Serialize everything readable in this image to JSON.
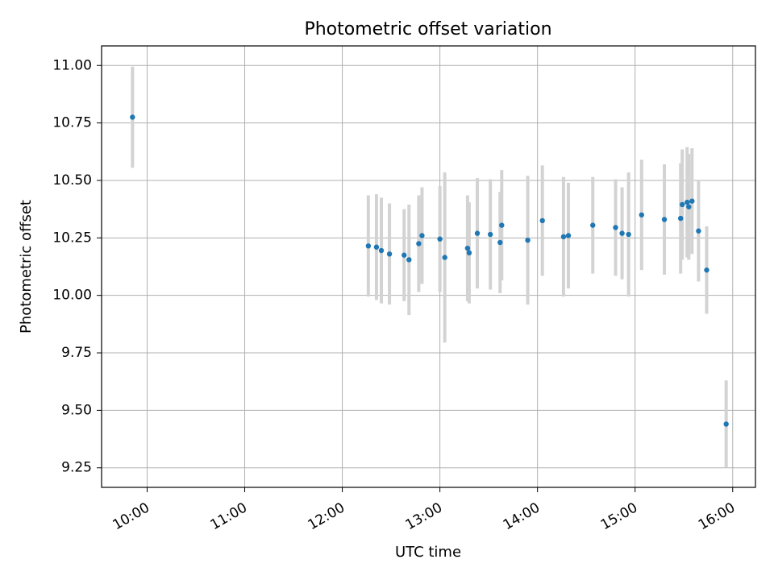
{
  "chart_data": {
    "type": "scatter",
    "title": "Photometric offset variation",
    "xlabel": "UTC time",
    "ylabel": "Photometric offset",
    "x_ticks": [
      "10:00",
      "11:00",
      "12:00",
      "13:00",
      "14:00",
      "15:00",
      "16:00"
    ],
    "y_ticks": [
      "9.25",
      "9.50",
      "9.75",
      "10.00",
      "10.25",
      "10.50",
      "10.75",
      "11.00"
    ],
    "xlim": [
      "09:32",
      "16:14"
    ],
    "ylim": [
      9.165,
      11.085
    ],
    "grid": true,
    "point_color": "#1f77b4",
    "errorbar_color": "#d3d3d3",
    "series": [
      {
        "points": [
          {
            "x": "09:51",
            "y": 10.775,
            "yerr": 0.22
          },
          {
            "x": "12:16",
            "y": 10.215,
            "yerr": 0.22
          },
          {
            "x": "12:21",
            "y": 10.21,
            "yerr": 0.23
          },
          {
            "x": "12:24",
            "y": 10.195,
            "yerr": 0.23
          },
          {
            "x": "12:29",
            "y": 10.18,
            "yerr": 0.22
          },
          {
            "x": "12:38",
            "y": 10.175,
            "yerr": 0.2
          },
          {
            "x": "12:41",
            "y": 10.155,
            "yerr": 0.24
          },
          {
            "x": "12:47",
            "y": 10.225,
            "yerr": 0.21
          },
          {
            "x": "12:49",
            "y": 10.26,
            "yerr": 0.21
          },
          {
            "x": "13:00",
            "y": 10.245,
            "yerr": 0.23
          },
          {
            "x": "13:03",
            "y": 10.165,
            "yerr": 0.37
          },
          {
            "x": "13:17",
            "y": 10.205,
            "yerr": 0.23
          },
          {
            "x": "13:18",
            "y": 10.185,
            "yerr": 0.22
          },
          {
            "x": "13:23",
            "y": 10.27,
            "yerr": 0.24
          },
          {
            "x": "13:31",
            "y": 10.265,
            "yerr": 0.24
          },
          {
            "x": "13:37",
            "y": 10.23,
            "yerr": 0.22
          },
          {
            "x": "13:38",
            "y": 10.305,
            "yerr": 0.24
          },
          {
            "x": "13:54",
            "y": 10.24,
            "yerr": 0.28
          },
          {
            "x": "14:03",
            "y": 10.325,
            "yerr": 0.24
          },
          {
            "x": "14:16",
            "y": 10.255,
            "yerr": 0.26
          },
          {
            "x": "14:19",
            "y": 10.26,
            "yerr": 0.23
          },
          {
            "x": "14:34",
            "y": 10.305,
            "yerr": 0.21
          },
          {
            "x": "14:48",
            "y": 10.295,
            "yerr": 0.21
          },
          {
            "x": "14:52",
            "y": 10.27,
            "yerr": 0.2
          },
          {
            "x": "14:56",
            "y": 10.265,
            "yerr": 0.27
          },
          {
            "x": "15:04",
            "y": 10.35,
            "yerr": 0.24
          },
          {
            "x": "15:18",
            "y": 10.33,
            "yerr": 0.24
          },
          {
            "x": "15:28",
            "y": 10.335,
            "yerr": 0.24
          },
          {
            "x": "15:29",
            "y": 10.395,
            "yerr": 0.24
          },
          {
            "x": "15:32",
            "y": 10.405,
            "yerr": 0.24
          },
          {
            "x": "15:33",
            "y": 10.385,
            "yerr": 0.23
          },
          {
            "x": "15:35",
            "y": 10.41,
            "yerr": 0.23
          },
          {
            "x": "15:39",
            "y": 10.28,
            "yerr": 0.22
          },
          {
            "x": "15:44",
            "y": 10.11,
            "yerr": 0.19
          },
          {
            "x": "15:56",
            "y": 9.44,
            "yerr": 0.19
          }
        ]
      }
    ]
  }
}
